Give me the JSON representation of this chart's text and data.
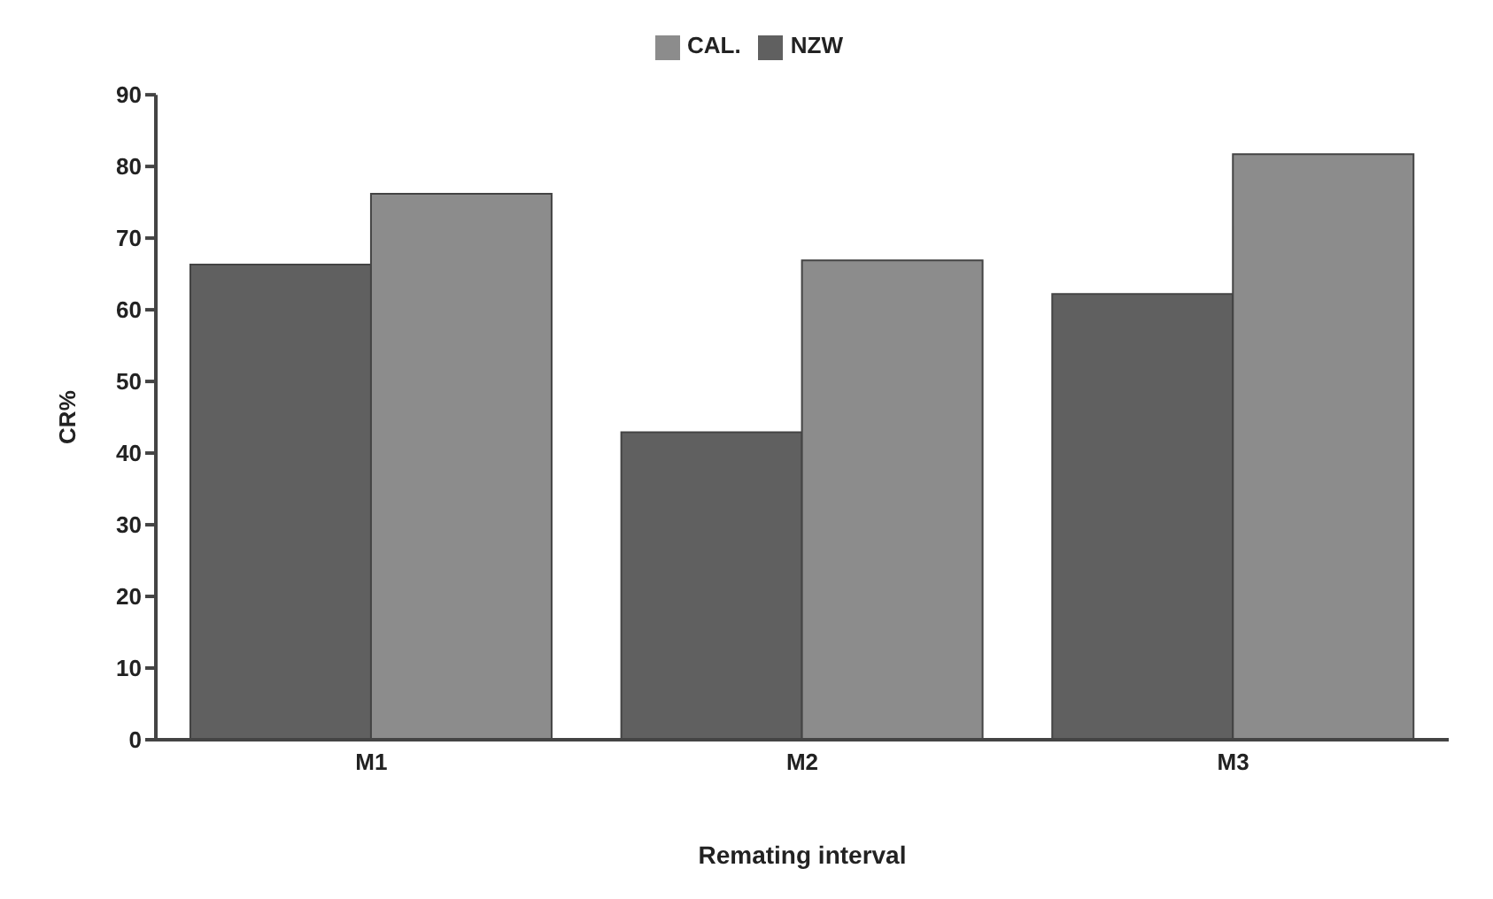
{
  "chart_data": {
    "type": "bar",
    "xlabel": "Remating interval",
    "ylabel": "CR%",
    "categories": [
      "M1",
      "M2",
      "M3"
    ],
    "series": [
      {
        "name": "NZW",
        "color": "#606060",
        "values": [
          66.3,
          42.9,
          62.2
        ]
      },
      {
        "name": "CAL.",
        "color": "#8c8c8c",
        "values": [
          76.2,
          66.9,
          81.7
        ]
      }
    ],
    "ylim": [
      0,
      90
    ],
    "yticks": [
      0,
      10,
      20,
      30,
      40,
      50,
      60,
      70,
      80,
      90
    ],
    "legend": "top",
    "grid": false
  }
}
